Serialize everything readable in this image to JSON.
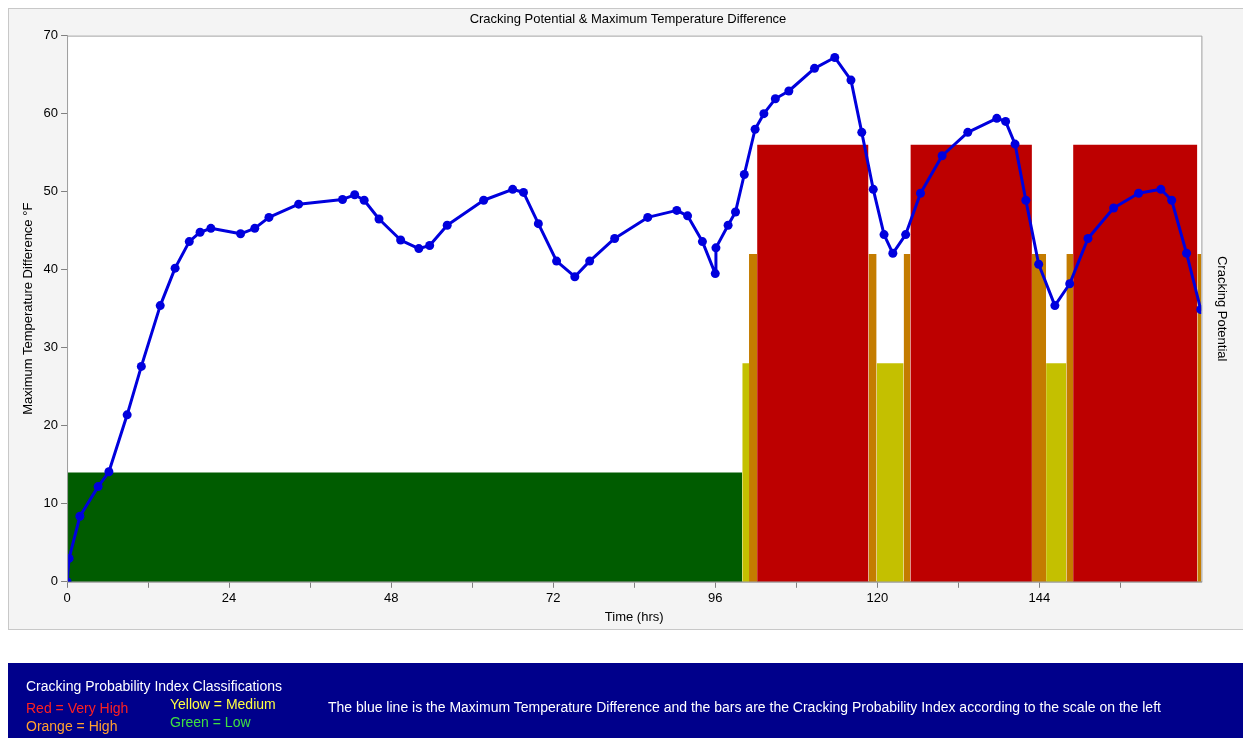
{
  "chart_data": {
    "type": "area",
    "title": "Cracking Potential & Maximum Temperature Difference",
    "xlabel": "Time (hrs)",
    "ylabel": "Maximum Temperature Difference °F",
    "y2label": "Cracking Potential",
    "xlim": [
      0,
      168
    ],
    "xticks": [
      0,
      {
        "value": 12,
        "label": null
      },
      24,
      {
        "value": 36,
        "label": null
      },
      48,
      {
        "value": 60,
        "label": null
      },
      72,
      {
        "value": 84,
        "label": null
      },
      96,
      {
        "value": 108,
        "label": null
      },
      120,
      {
        "value": 132,
        "label": null
      },
      144,
      {
        "value": 156,
        "label": null
      }
    ],
    "ylim": [
      0,
      70
    ],
    "yticks": [
      0,
      10,
      20,
      30,
      40,
      50,
      60,
      70
    ],
    "grid": false,
    "legend": false,
    "line_style": "solid",
    "series": [
      {
        "type": "area",
        "color": "#005c00",
        "x": [
          0,
          100
        ],
        "values": [
          14,
          14
        ]
      },
      {
        "type": "area",
        "color": "#c4c000",
        "x": [
          100,
          101
        ],
        "values": [
          28,
          28
        ]
      },
      {
        "type": "area",
        "color": "#c47c00",
        "x": [
          101,
          102.2
        ],
        "values": [
          42,
          42
        ]
      },
      {
        "type": "area",
        "color": "#bd0000",
        "x": [
          102.2,
          118.7
        ],
        "values": [
          56,
          56
        ]
      },
      {
        "type": "area",
        "color": "#c47c00",
        "x": [
          118.7,
          119.9
        ],
        "values": [
          42,
          42
        ]
      },
      {
        "type": "area",
        "color": "#c4c000",
        "x": [
          119.9,
          123.9
        ],
        "values": [
          28,
          28
        ]
      },
      {
        "type": "area",
        "color": "#c47c00",
        "x": [
          123.9,
          124.9
        ],
        "values": [
          42,
          42
        ]
      },
      {
        "type": "area",
        "color": "#bd0000",
        "x": [
          124.9,
          142.9
        ],
        "values": [
          56,
          56
        ]
      },
      {
        "type": "area",
        "color": "#c47c00",
        "x": [
          142.9,
          145
        ],
        "values": [
          42,
          42
        ]
      },
      {
        "type": "area",
        "color": "#c4c000",
        "x": [
          145,
          148
        ],
        "values": [
          28,
          28
        ]
      },
      {
        "type": "area",
        "color": "#c47c00",
        "x": [
          148,
          149
        ],
        "values": [
          42,
          42
        ]
      },
      {
        "type": "area",
        "color": "#bd0000",
        "x": [
          149,
          167.4
        ],
        "values": [
          56,
          56
        ]
      },
      {
        "type": "area",
        "color": "#c47c00",
        "x": [
          167.4,
          168
        ],
        "values": [
          42,
          42
        ]
      },
      {
        "type": "line",
        "marker": "circle",
        "color": "#0000dd",
        "x": [
          0,
          0.3,
          1.9,
          4.6,
          6.2,
          8.9,
          11,
          13.8,
          16,
          18.1,
          19.7,
          21.3,
          25.7,
          27.8,
          29.9,
          34.3,
          40.8,
          42.6,
          44,
          46.2,
          49.4,
          52.1,
          53.7,
          56.3,
          61.7,
          66,
          67.6,
          69.8,
          72.5,
          75.2,
          77.4,
          81.1,
          86,
          90.3,
          91.9,
          94.1,
          96,
          96.1,
          97.9,
          99,
          100.3,
          101.9,
          103.2,
          104.9,
          106.9,
          110.7,
          113.7,
          116.1,
          117.7,
          119.4,
          121,
          122.3,
          124.2,
          126.4,
          129.6,
          133.4,
          137.7,
          139,
          140.4,
          142,
          143.9,
          146.3,
          148.5,
          151.2,
          155,
          158.7,
          162,
          163.6,
          165.8,
          167.9
        ],
        "values": [
          0,
          3,
          8.4,
          12.2,
          14.1,
          21.4,
          27.6,
          35.4,
          40.2,
          43.6,
          44.8,
          45.3,
          44.6,
          45.3,
          46.7,
          48.4,
          49,
          49.6,
          48.9,
          46.5,
          43.8,
          42.7,
          43.1,
          45.7,
          48.9,
          50.3,
          49.9,
          45.9,
          41.1,
          39.1,
          41.1,
          44,
          46.7,
          47.6,
          46.9,
          43.6,
          39.5,
          42.8,
          45.7,
          47.4,
          52.2,
          58,
          60,
          61.9,
          62.9,
          65.8,
          67.2,
          64.3,
          57.6,
          50.3,
          44.5,
          42.1,
          44.5,
          49.8,
          54.6,
          57.6,
          59.4,
          59,
          56.1,
          48.9,
          40.7,
          35.4,
          38.2,
          44,
          47.9,
          49.8,
          50.3,
          48.9,
          42.1,
          34.9
        ]
      }
    ],
    "annotations": [
      "Cracking Probability Index Classifications",
      "Red = Very High",
      "Orange = High",
      "Yellow = Medium",
      "Green = Low",
      "The blue line is the Maximum Temperature Difference and the bars are the Cracking Probability Index according to the scale on the left"
    ]
  }
}
